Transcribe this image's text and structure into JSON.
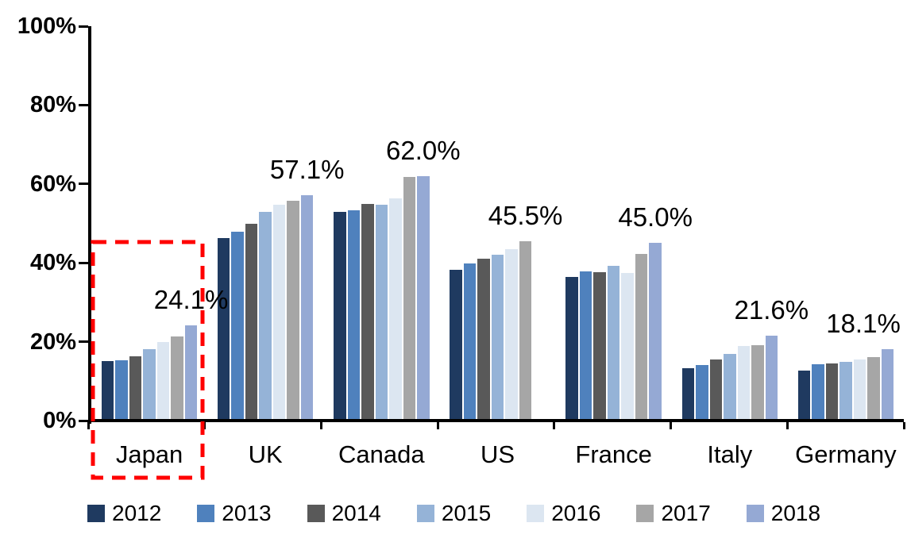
{
  "chart_data": {
    "type": "bar",
    "title": "",
    "xlabel": "",
    "ylabel": "",
    "categories": [
      "Japan",
      "UK",
      "Canada",
      "US",
      "France",
      "Italy",
      "Germany"
    ],
    "series": [
      {
        "name": "2012",
        "color": "#1F3A60",
        "values": [
          15.1,
          46.2,
          53.0,
          38.2,
          36.4,
          13.2,
          12.6
        ]
      },
      {
        "name": "2013",
        "color": "#4F81BD",
        "values": [
          15.3,
          47.8,
          53.3,
          39.9,
          37.8,
          14.1,
          14.2
        ]
      },
      {
        "name": "2014",
        "color": "#595959",
        "values": [
          16.3,
          49.8,
          54.9,
          41.0,
          37.7,
          15.4,
          14.5
        ]
      },
      {
        "name": "2015",
        "color": "#95B3D7",
        "values": [
          18.2,
          53.0,
          54.7,
          42.0,
          39.3,
          16.9,
          14.9
        ]
      },
      {
        "name": "2016",
        "color": "#DCE6F1",
        "values": [
          20.0,
          54.7,
          56.3,
          43.4,
          37.4,
          18.9,
          15.4
        ]
      },
      {
        "name": "2017",
        "color": "#A6A6A6",
        "values": [
          21.3,
          55.7,
          61.8,
          45.5,
          42.3,
          19.2,
          16.0
        ]
      },
      {
        "name": "2018",
        "color": "#95A9D4",
        "values": [
          24.1,
          57.1,
          62.0,
          null,
          45.0,
          21.6,
          18.1
        ]
      }
    ],
    "data_labels": [
      {
        "category": "Japan",
        "series": "2018",
        "text": "24.1%"
      },
      {
        "category": "UK",
        "series": "2018",
        "text": "57.1%"
      },
      {
        "category": "Canada",
        "series": "2018",
        "text": "62.0%"
      },
      {
        "category": "US",
        "series": "2017",
        "text": "45.5%"
      },
      {
        "category": "France",
        "series": "2018",
        "text": "45.0%"
      },
      {
        "category": "Italy",
        "series": "2018",
        "text": "21.6%"
      },
      {
        "category": "Germany",
        "series": "2018",
        "text": "18.1%"
      }
    ],
    "ylim": [
      0,
      100
    ],
    "yticks": [
      {
        "value": 0,
        "label": "0%"
      },
      {
        "value": 20,
        "label": "20%"
      },
      {
        "value": 40,
        "label": "40%"
      },
      {
        "value": 60,
        "label": "60%"
      },
      {
        "value": 80,
        "label": "80%"
      },
      {
        "value": 100,
        "label": "100%"
      }
    ],
    "grid": false,
    "legend_position": "bottom",
    "annotations": {
      "highlight_box": {
        "shape": "dashed-rectangle",
        "color": "#FF0000",
        "target_category": "Japan"
      }
    }
  },
  "colors": {
    "axis": "#000000",
    "text": "#000000",
    "background": "#FFFFFF",
    "highlight": "#FF0000"
  }
}
